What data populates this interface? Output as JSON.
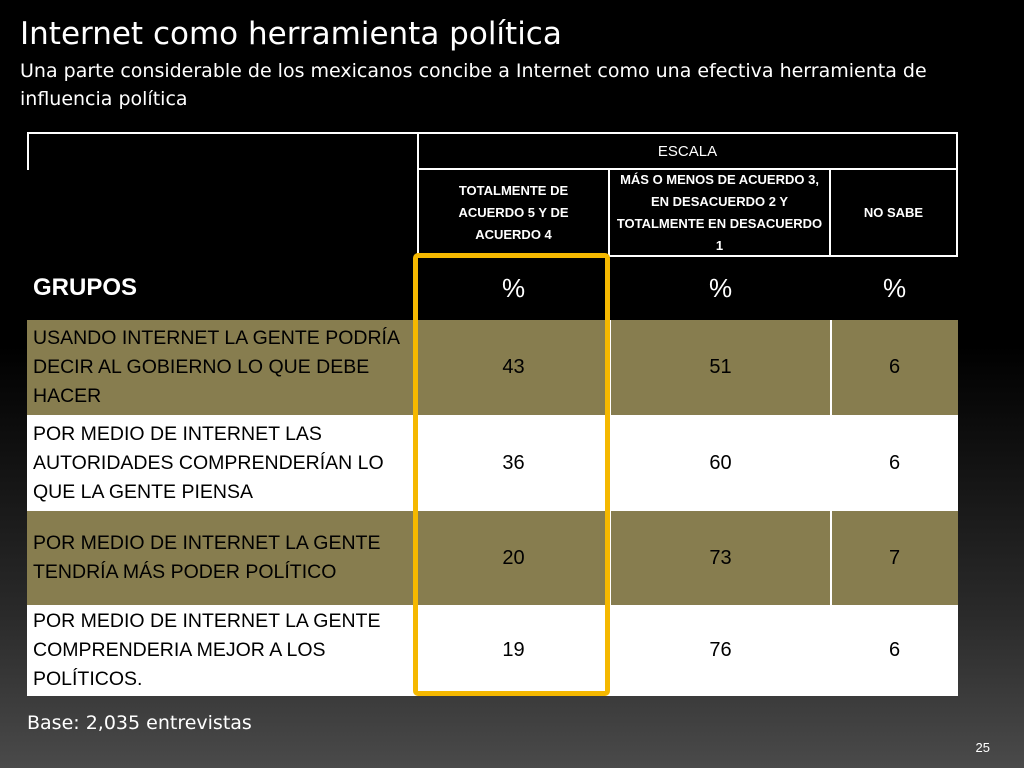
{
  "title": "Internet como herramienta política",
  "subtitle": "Una parte considerable de los mexicanos concibe a Internet como una efectiva herramienta de influencia política",
  "table": {
    "scale_header": "ESCALA",
    "columns": [
      "TOTALMENTE DE ACUERDO 5 Y DE ACUERDO 4",
      "MÁS O MENOS DE ACUERDO 3, EN DESACUERDO 2 Y TOTALMENTE EN DESACUERDO 1",
      "NO SABE"
    ],
    "groups_label": "GRUPOS",
    "unit_labels": [
      "%",
      "%",
      "%"
    ],
    "rows": [
      {
        "label": "USANDO INTERNET LA GENTE PODRÍA DECIR AL GOBIERNO LO QUE DEBE HACER",
        "values": [
          "43",
          "51",
          "6"
        ]
      },
      {
        "label": "POR MEDIO DE INTERNET LAS AUTORIDADES COMPRENDERÍAN LO QUE LA GENTE PIENSA",
        "values": [
          "36",
          "60",
          "6"
        ]
      },
      {
        "label": "POR MEDIO DE INTERNET LA GENTE TENDRÍA MÁS PODER POLÍTICO",
        "values": [
          "20",
          "73",
          "7"
        ]
      },
      {
        "label": "POR MEDIO DE INTERNET LA GENTE COMPRENDERIA MEJOR A LOS POLÍTICOS.",
        "values": [
          "19",
          "76",
          "6"
        ]
      }
    ]
  },
  "footer": {
    "base": "Base: 2,035  entrevistas",
    "page_number": "25"
  },
  "colors": {
    "dark_row": "#877d4f",
    "light_row": "#ffffff",
    "highlight": "#f5b800"
  }
}
